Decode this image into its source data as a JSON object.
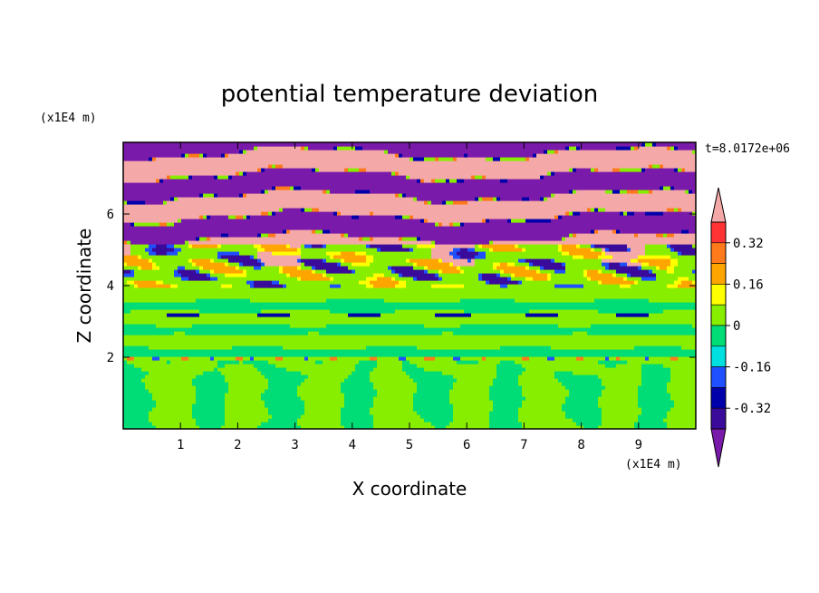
{
  "chart_data": {
    "type": "heatmap",
    "title": "potential temperature deviation",
    "xlabel": "X coordinate",
    "ylabel": "Z coordinate",
    "x_unit": "(x1E4 m)",
    "y_unit": "(x1E4 m)",
    "time_label": "t=8.0172e+06",
    "xlim": [
      0,
      10
    ],
    "ylim": [
      0,
      8
    ],
    "x_ticks": [
      1,
      2,
      3,
      4,
      5,
      6,
      7,
      8,
      9
    ],
    "y_ticks": [
      2,
      4,
      6
    ],
    "x_tick_labels": [
      "1",
      "2",
      "3",
      "4",
      "5",
      "6",
      "7",
      "8",
      "9"
    ],
    "y_tick_labels": [
      "2",
      "4",
      "6"
    ],
    "colorbar": {
      "tick_labels": [
        "0.32",
        "0.16",
        "0",
        "-0.16",
        "-0.32"
      ],
      "levels": [
        0.4,
        0.32,
        0.24,
        0.16,
        0.08,
        0,
        -0.08,
        -0.16,
        -0.24,
        -0.32,
        -0.4
      ],
      "colors": [
        "#ff3333",
        "#ff7a1a",
        "#ffa500",
        "#ffff00",
        "#88ee00",
        "#00dd77",
        "#00e0e0",
        "#1e50ff",
        "#0000aa",
        "#3a0a9a"
      ],
      "over_color": "#f4a8a8",
      "under_color": "#7a1aaa",
      "extend": "both"
    },
    "bands": [
      {
        "z_min": 0.0,
        "z_max": 1.9,
        "description_values": [
          0.0,
          -0.08
        ]
      },
      {
        "z_min": 1.9,
        "z_max": 2.05,
        "description_values": [
          -0.2,
          0.3
        ]
      },
      {
        "z_min": 2.05,
        "z_max": 3.9,
        "description_values": [
          0.04,
          -0.04
        ]
      },
      {
        "z_min": 3.9,
        "z_max": 5.2,
        "description_values": [
          0.1,
          -0.36,
          0.4
        ]
      },
      {
        "z_min": 5.2,
        "z_max": 8.0,
        "description_values": [
          0.45,
          -0.45
        ]
      }
    ]
  }
}
